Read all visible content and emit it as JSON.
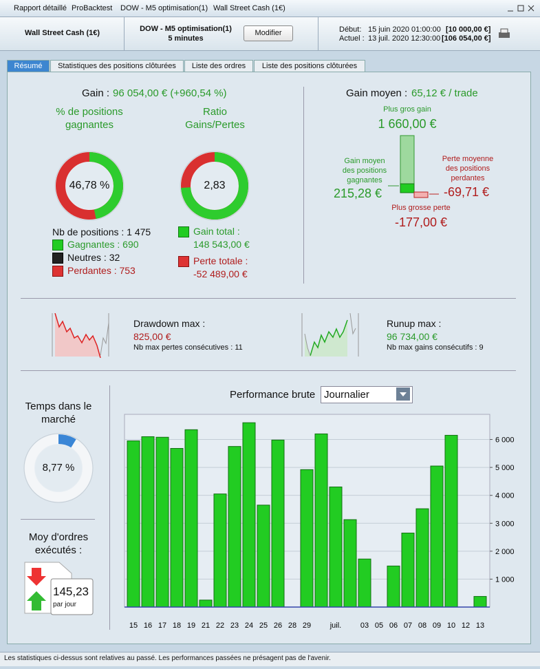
{
  "window": {
    "tabs": [
      "Rapport détaillé",
      "ProBacktest",
      "DOW - M5 optimisation(1)",
      "Wall Street Cash (1€)"
    ]
  },
  "header": {
    "instrument": "Wall Street Cash (1€)",
    "system": "DOW - M5 optimisation(1)",
    "timeframe": "5 minutes",
    "button": "Modifier",
    "start_label": "Début:",
    "start_date": "15 juin 2020 01:00:00",
    "start_capital": "[10 000,00 €]",
    "current_label": "Actuel :",
    "current_date": "13 juil. 2020 12:30:00",
    "current_capital": "[106 054,00 €]"
  },
  "tabs": [
    "Résumé",
    "Statistiques des positions clôturées",
    "Liste des ordres",
    "Liste des positions clôturées"
  ],
  "summary": {
    "gain_label": "Gain :",
    "gain_value": "96 054,00 € (+960,54 %)",
    "win_title": "% de positions gagnantes",
    "win_pct": {
      "value": 46.78,
      "label": "46,78 %"
    },
    "ratio_title": "Ratio Gains/Pertes",
    "ratio": {
      "value": 2.83,
      "label": "2,83"
    },
    "positions": "Nb de positions : 1 475",
    "winners": "Gagnantes : 690",
    "neutral": "Neutres : 32",
    "losers": "Perdantes : 753",
    "total_gain_label": "Gain total :",
    "total_gain": "148 543,00 €",
    "total_loss_label": "Perte totale :",
    "total_loss": "-52 489,00 €"
  },
  "average": {
    "label": "Gain moyen :",
    "value": "65,12 € / trade",
    "max_gain_label": "Plus gros gain",
    "max_gain": "1 660,00 €",
    "avg_win_label": "Gain moyen des positions gagnantes",
    "avg_win": "215,28 €",
    "avg_loss_label": "Perte moyenne des positions perdantes",
    "avg_loss": "-69,71 €",
    "max_loss_label": "Plus grosse perte",
    "max_loss": "-177,00 €"
  },
  "drawdown": {
    "label": "Drawdown max :",
    "value": "825,00 €",
    "streak": "Nb max pertes consécutives : 11"
  },
  "runup": {
    "label": "Runup max :",
    "value": "96 734,00 €",
    "streak": "Nb max gains consécutifs : 9"
  },
  "market_time": {
    "title": "Temps dans le marché",
    "value": {
      "value": 8.77,
      "label": "8,77 %"
    }
  },
  "orders": {
    "title": "Moy d'ordres exécutés :",
    "value": "145,23",
    "unit": "par jour"
  },
  "period_select": "Journalier",
  "chart_data": {
    "type": "bar",
    "title": "Performance brute",
    "color": "#22cc22",
    "categories": [
      "15",
      "16",
      "17",
      "18",
      "19",
      "21",
      "22",
      "23",
      "24",
      "25",
      "26",
      "28",
      "29",
      null,
      "juil.",
      null,
      "03",
      "05",
      "06",
      "07",
      "08",
      "09",
      "10",
      "12",
      "13"
    ],
    "values": [
      5950,
      6100,
      6080,
      5680,
      6350,
      250,
      4050,
      5750,
      6600,
      3650,
      5980,
      null,
      4920,
      6200,
      4300,
      3130,
      1720,
      null,
      1470,
      2650,
      3520,
      5050,
      6150,
      null,
      380
    ],
    "ylim": [
      0,
      6900
    ],
    "yticks": [
      {
        "value": 1000,
        "label": "1 000"
      },
      {
        "value": 2000,
        "label": "2 000"
      },
      {
        "value": 3000,
        "label": "3 000"
      },
      {
        "value": 4000,
        "label": "4 000"
      },
      {
        "value": 5000,
        "label": "5 000"
      },
      {
        "value": 6000,
        "label": "6 000"
      }
    ],
    "grid": true
  },
  "footer": "Les statistiques ci-dessus sont relatives au passé. Les performances passées ne présagent pas de l'avenir."
}
